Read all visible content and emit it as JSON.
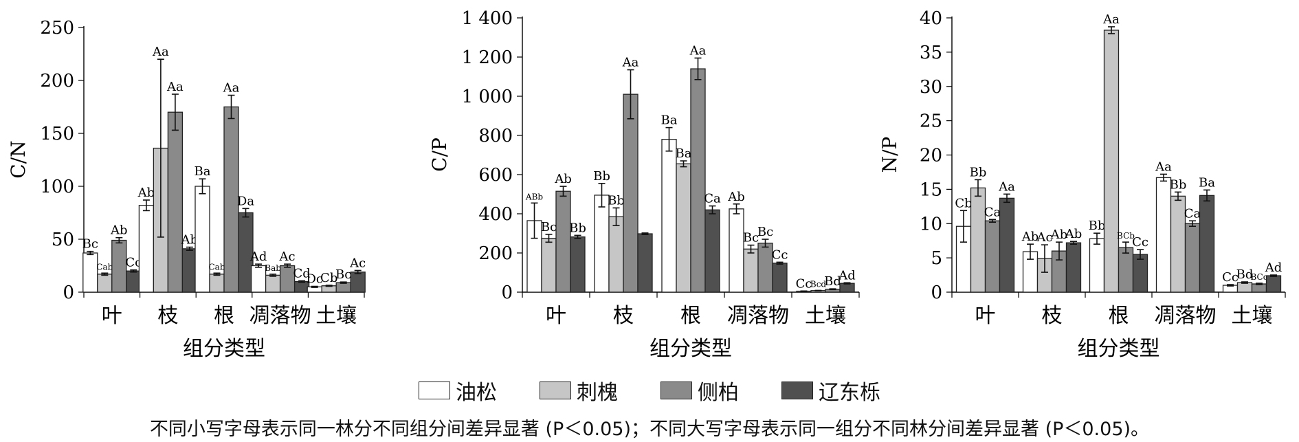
{
  "legend": [
    {
      "label": "油松",
      "color": "#ffffff"
    },
    {
      "label": "刺槐",
      "color": "#c6c6c6"
    },
    {
      "label": "侧柏",
      "color": "#8a8a8a"
    },
    {
      "label": "辽东栎",
      "color": "#505050"
    }
  ],
  "note": "不同小写字母表示同一林分不同组分间差异显著 (P＜0.05)；不同大写字母表示同一组分不同林分间差异显著 (P＜0.05)。",
  "chart_data": [
    {
      "type": "bar",
      "ylabel": "C/N",
      "xlabel": "组分类型",
      "categories": [
        "叶",
        "枝",
        "根",
        "凋落物",
        "土壤"
      ],
      "ylim": [
        0,
        250
      ],
      "yticks": [
        0,
        50,
        100,
        150,
        200,
        250
      ],
      "ytick_labels": [
        "0",
        "50",
        "100",
        "150",
        "200",
        "250"
      ],
      "series": [
        {
          "name": "油松",
          "values": [
            37,
            82,
            100,
            25,
            5
          ],
          "errors": [
            1.5,
            5,
            7,
            1.5,
            0.5
          ],
          "labels": [
            "Bc",
            "Ab",
            "Ba",
            "Ad",
            "Dc"
          ]
        },
        {
          "name": "刺槐",
          "values": [
            17,
            136,
            17,
            16,
            6
          ],
          "errors": [
            1,
            84,
            1,
            1,
            0.5
          ],
          "labels": [
            "Cab",
            "Aa",
            "Cab",
            "Bab",
            "Cb"
          ]
        },
        {
          "name": "侧柏",
          "values": [
            49,
            170,
            175,
            25,
            9
          ],
          "errors": [
            2.5,
            17,
            11,
            1.5,
            0.6
          ],
          "labels": [
            "Ab",
            "Aa",
            "Aa",
            "Ac",
            "Bc"
          ]
        },
        {
          "name": "辽东栎",
          "values": [
            20,
            41,
            75,
            10,
            19
          ],
          "errors": [
            1,
            1.5,
            4,
            0.7,
            1.5
          ],
          "labels": [
            "Cc",
            "Ab",
            "Da",
            "Cd",
            "Ac"
          ]
        }
      ]
    },
    {
      "type": "bar",
      "ylabel": "C/P",
      "xlabel": "组分类型",
      "categories": [
        "叶",
        "枝",
        "根",
        "凋落物",
        "土壤"
      ],
      "ylim": [
        0,
        1400
      ],
      "yticks": [
        0,
        200,
        400,
        600,
        800,
        1000,
        1200,
        1400
      ],
      "ytick_labels": [
        "0",
        "200",
        "400",
        "600",
        "800",
        "1 000",
        "1 200",
        "1 400"
      ],
      "series": [
        {
          "name": "油松",
          "values": [
            365,
            495,
            780,
            425,
            5
          ],
          "errors": [
            90,
            60,
            60,
            25,
            1
          ],
          "labels": [
            "ABb",
            "Bb",
            "Ba",
            "Ab",
            "Cc"
          ]
        },
        {
          "name": "刺槐",
          "values": [
            275,
            385,
            655,
            220,
            8
          ],
          "errors": [
            20,
            45,
            15,
            20,
            1
          ],
          "labels": [
            "Bc",
            "Bb",
            "Ba",
            "Bc",
            "Bcd"
          ]
        },
        {
          "name": "侧柏",
          "values": [
            515,
            1010,
            1140,
            250,
            15
          ],
          "errors": [
            25,
            125,
            55,
            20,
            2
          ],
          "labels": [
            "Ab",
            "Aa",
            "Aa",
            "Bc",
            "Bd"
          ]
        },
        {
          "name": "辽东栎",
          "values": [
            282,
            298,
            420,
            148,
            45
          ],
          "errors": [
            8,
            4,
            20,
            5,
            3
          ],
          "labels": [
            "Bb",
            "",
            "Ca",
            "Cc",
            "Ad"
          ]
        }
      ]
    },
    {
      "type": "bar",
      "ylabel": "N/P",
      "xlabel": "组分类型",
      "categories": [
        "叶",
        "枝",
        "根",
        "凋落物",
        "土壤"
      ],
      "ylim": [
        0,
        40
      ],
      "yticks": [
        0,
        5,
        10,
        15,
        20,
        25,
        30,
        35,
        40
      ],
      "ytick_labels": [
        "0",
        "5",
        "10",
        "15",
        "20",
        "25",
        "30",
        "35",
        "40"
      ],
      "series": [
        {
          "name": "油松",
          "values": [
            9.6,
            5.9,
            7.8,
            16.7,
            1.0
          ],
          "errors": [
            2.3,
            1.1,
            0.8,
            0.5,
            0.1
          ],
          "labels": [
            "Cb",
            "Ab",
            "Bb",
            "Aa",
            "Cc"
          ]
        },
        {
          "name": "刺槐",
          "values": [
            15.2,
            4.9,
            38.2,
            14.0,
            1.4
          ],
          "errors": [
            1.2,
            2.0,
            0.5,
            0.6,
            0.1
          ],
          "labels": [
            "Bb",
            "Ac",
            "Aa",
            "Bb",
            "Bd"
          ]
        },
        {
          "name": "侧柏",
          "values": [
            10.4,
            6.0,
            6.5,
            10.0,
            1.2
          ],
          "errors": [
            0.2,
            1.3,
            0.8,
            0.4,
            0.1
          ],
          "labels": [
            "Ca",
            "Ab",
            "BCb",
            "Ca",
            "BCc"
          ]
        },
        {
          "name": "辽东栎",
          "values": [
            13.7,
            7.2,
            5.5,
            14.1,
            2.4
          ],
          "errors": [
            0.6,
            0.2,
            0.7,
            0.8,
            0.1
          ],
          "labels": [
            "Aa",
            "Ab",
            "Cc",
            "Ba",
            "Ad"
          ]
        }
      ]
    }
  ]
}
